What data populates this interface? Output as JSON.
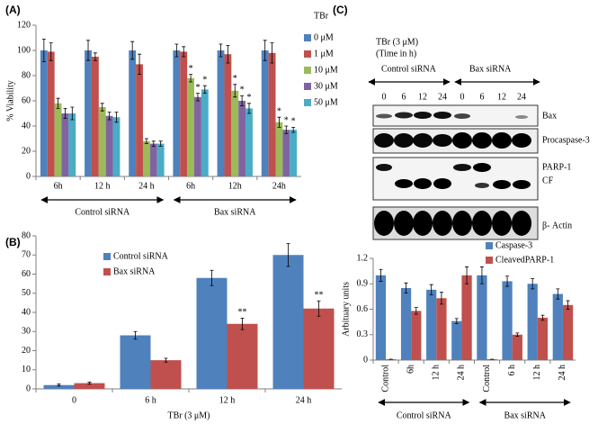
{
  "chart_data": [
    {
      "type": "bar",
      "panel": "(A)",
      "ylabel": "% Viability",
      "legend_title": "TBr",
      "categories": [
        "6h",
        "12 h",
        "24 h",
        "6h",
        "12h",
        "24h"
      ],
      "groups": [
        "Control siRNA",
        "Bax siRNA"
      ],
      "ylim": [
        0,
        120
      ],
      "yticks": [
        0,
        20,
        40,
        60,
        80,
        100,
        120
      ],
      "series": [
        {
          "name": "0 μM",
          "color": "#4f81bd",
          "values": [
            100,
            100,
            100,
            100,
            100,
            100
          ],
          "errors": [
            9,
            8,
            7,
            5,
            5,
            8
          ]
        },
        {
          "name": "1 μM",
          "color": "#c0504d",
          "values": [
            99,
            95,
            89,
            99,
            97,
            98
          ],
          "errors": [
            7,
            3,
            8,
            4,
            7,
            8
          ]
        },
        {
          "name": "10 μM",
          "color": "#9bbb59",
          "values": [
            58,
            55,
            28,
            78,
            68,
            43
          ],
          "errors": [
            4,
            3,
            2,
            3,
            5,
            4
          ],
          "significance": [
            null,
            null,
            null,
            "*",
            "*",
            "*"
          ]
        },
        {
          "name": "30 μM",
          "color": "#8064a2",
          "values": [
            50,
            48,
            26,
            63,
            60,
            37
          ],
          "errors": [
            4,
            3,
            2,
            3,
            4,
            3
          ],
          "significance": [
            null,
            null,
            null,
            "*",
            "*",
            "*"
          ]
        },
        {
          "name": "50 μM",
          "color": "#4bacc6",
          "values": [
            50,
            47,
            26,
            69,
            54,
            37
          ],
          "errors": [
            5,
            4,
            2,
            3,
            4,
            2
          ],
          "significance": [
            null,
            null,
            null,
            "*",
            "*",
            "*"
          ]
        }
      ]
    },
    {
      "type": "bar",
      "panel": "(B)",
      "xlabel": "TBr (3 μM)",
      "categories": [
        "0",
        "6 h",
        "12 h",
        "24 h"
      ],
      "ylim": [
        0,
        80
      ],
      "yticks": [
        0,
        10,
        20,
        30,
        40,
        50,
        60,
        70,
        80
      ],
      "series": [
        {
          "name": "Control siRNA",
          "color": "#4f81bd",
          "values": [
            2,
            28,
            58,
            70
          ],
          "errors": [
            0.5,
            2,
            4,
            6
          ]
        },
        {
          "name": "Bax siRNA",
          "color": "#c0504d",
          "values": [
            3,
            15,
            34,
            42
          ],
          "errors": [
            0.5,
            1,
            3,
            4
          ],
          "significance": [
            null,
            null,
            "**",
            "**"
          ]
        }
      ]
    },
    {
      "type": "bar",
      "ylabel": "Arbituary units",
      "categories": [
        "Control",
        "6h",
        "12 h",
        "24 h",
        "Control",
        "6 h",
        "12 h",
        "24 h"
      ],
      "groups": [
        "Control siRNA",
        "Bax siRNA"
      ],
      "ylim": [
        0,
        1.2
      ],
      "yticks": [
        0,
        0.3,
        0.6,
        0.9,
        1.2
      ],
      "series": [
        {
          "name": "Caspase-3",
          "color": "#4f81bd",
          "values": [
            1.0,
            0.85,
            0.83,
            0.46,
            1.0,
            0.93,
            0.9,
            0.78
          ],
          "errors": [
            0.07,
            0.06,
            0.06,
            0.03,
            0.1,
            0.06,
            0.06,
            0.06
          ]
        },
        {
          "name": "CleavedPARP-1",
          "color": "#c0504d",
          "values": [
            0.01,
            0.58,
            0.73,
            1.0,
            0.01,
            0.3,
            0.5,
            0.65
          ],
          "errors": [
            0,
            0.04,
            0.07,
            0.1,
            0,
            0.02,
            0.03,
            0.05
          ]
        }
      ]
    }
  ],
  "blot": {
    "panel": "(C)",
    "treatment": "TBr (3 μM)",
    "time_note": "(Time in h)",
    "groups": [
      "Control siRNA",
      "Bax siRNA"
    ],
    "lanes": [
      "0",
      "6",
      "12",
      "24",
      "0",
      "6",
      "12",
      "24"
    ],
    "rows": [
      "Bax",
      "Procaspase-3",
      "PARP-1",
      "CF",
      "β- Actin"
    ]
  }
}
